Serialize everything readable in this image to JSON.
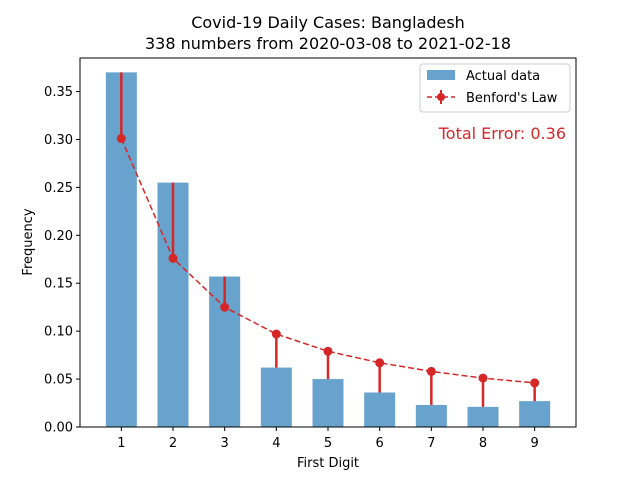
{
  "chart_data": {
    "type": "bar",
    "title": "Covid-19 Daily Cases: Bangladesh",
    "subtitle": "338 numbers from 2020-03-08 to 2021-02-18",
    "xlabel": "First Digit",
    "ylabel": "Frequency",
    "categories": [
      "1",
      "2",
      "3",
      "4",
      "5",
      "6",
      "7",
      "8",
      "9"
    ],
    "ylim": [
      0,
      0.385
    ],
    "yticks": [
      "0.00",
      "0.05",
      "0.10",
      "0.15",
      "0.20",
      "0.25",
      "0.30",
      "0.35"
    ],
    "series": [
      {
        "name": "Actual data",
        "type": "bar",
        "color": "#1f77b4",
        "values": [
          0.37,
          0.255,
          0.157,
          0.062,
          0.05,
          0.036,
          0.023,
          0.021,
          0.027
        ]
      },
      {
        "name": "Benford's Law",
        "type": "line",
        "style": "dashed-with-markers",
        "color": "#d62728",
        "values": [
          0.301,
          0.176,
          0.125,
          0.097,
          0.079,
          0.067,
          0.058,
          0.051,
          0.046
        ]
      }
    ],
    "annotation": "Total Error: 0.36",
    "annotation_color": "#d62728",
    "legend_position": "top-right",
    "grid": false
  }
}
